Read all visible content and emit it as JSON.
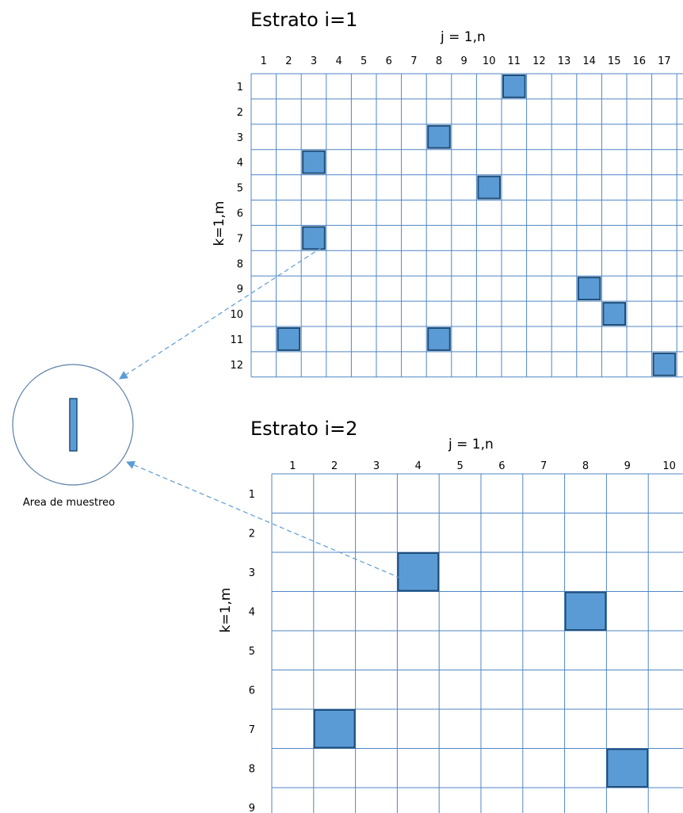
{
  "strata": [
    {
      "id": "estrato-1",
      "title": "Estrato i=1",
      "col_axis_label": "j = 1,n",
      "row_axis_label": "k=1,m",
      "columns": [
        "1",
        "2",
        "3",
        "4",
        "5",
        "6",
        "7",
        "8",
        "9",
        "10",
        "11",
        "12",
        "13",
        "14",
        "15",
        "16",
        "17"
      ],
      "rows": [
        "1",
        "2",
        "3",
        "4",
        "5",
        "6",
        "7",
        "8",
        "9",
        "10",
        "11",
        "12"
      ],
      "selected_cells": [
        {
          "row": 1,
          "col": 11
        },
        {
          "row": 3,
          "col": 8
        },
        {
          "row": 4,
          "col": 3
        },
        {
          "row": 5,
          "col": 10
        },
        {
          "row": 7,
          "col": 3
        },
        {
          "row": 9,
          "col": 14
        },
        {
          "row": 10,
          "col": 15
        },
        {
          "row": 11,
          "col": 2
        },
        {
          "row": 11,
          "col": 8
        },
        {
          "row": 12,
          "col": 17
        }
      ]
    },
    {
      "id": "estrato-2",
      "title": "Estrato i=2",
      "col_axis_label": "j = 1,n",
      "row_axis_label": "k=1,m",
      "columns": [
        "1",
        "2",
        "3",
        "4",
        "5",
        "6",
        "7",
        "8",
        "9",
        "10"
      ],
      "rows": [
        "1",
        "2",
        "3",
        "4",
        "5",
        "6",
        "7",
        "8",
        "9"
      ],
      "selected_cells": [
        {
          "row": 3,
          "col": 4
        },
        {
          "row": 4,
          "col": 8
        },
        {
          "row": 7,
          "col": 2
        },
        {
          "row": 8,
          "col": 9
        }
      ]
    }
  ],
  "sampling_area": {
    "caption": "Area de muestreo"
  },
  "colors": {
    "cell_fill": "#5b9bd5",
    "cell_border": "#1f4e79",
    "grid_line": "#4f86c6",
    "arrow": "#5b9bd5"
  },
  "arrows": [
    {
      "from_stratum": 0,
      "from_row": 7,
      "from_col": 3
    },
    {
      "from_stratum": 1,
      "from_row": 3,
      "from_col": 4
    }
  ]
}
